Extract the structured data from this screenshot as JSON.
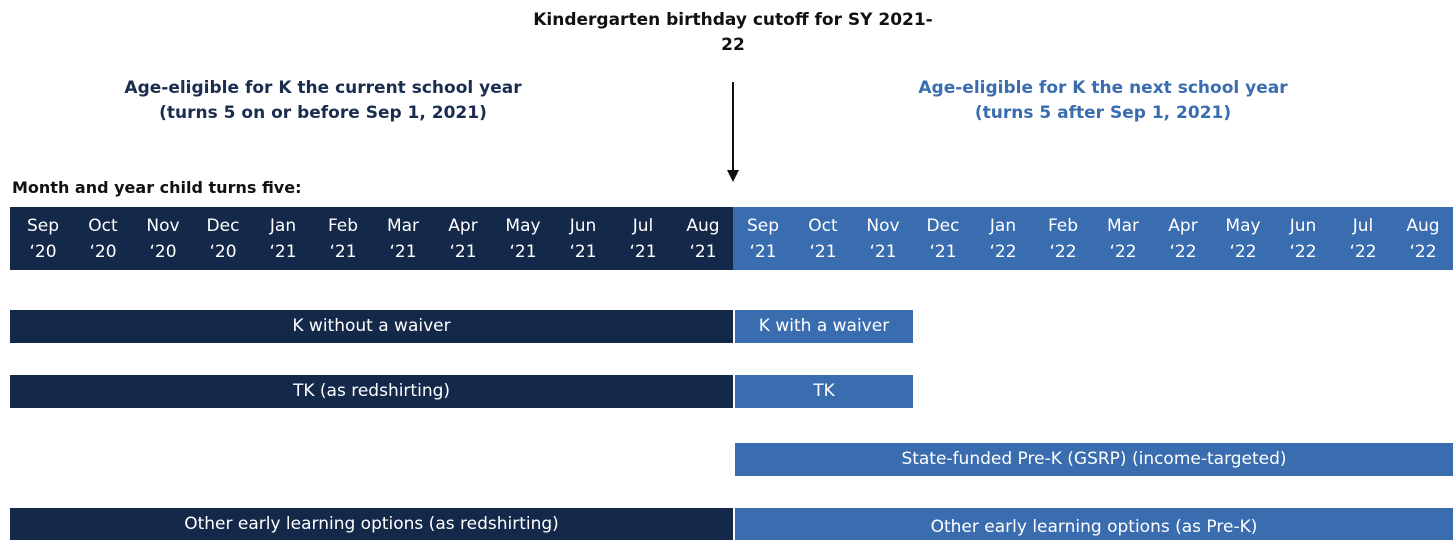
{
  "header": {
    "title": "Kindergarten birthday cutoff for SY 2021-22",
    "left_heading": [
      "Age-eligible for K the current school year",
      "(turns 5 on or before Sep 1, 2021)"
    ],
    "right_heading": [
      "Age-eligible for K the next school year",
      "(turns 5 after Sep 1, 2021)"
    ]
  },
  "timeline": {
    "label": "Month and year child turns five:",
    "months": [
      {
        "month": "Sep",
        "year": "‘20"
      },
      {
        "month": "Oct",
        "year": "‘20"
      },
      {
        "month": "Nov",
        "year": "‘20"
      },
      {
        "month": "Dec",
        "year": "‘20"
      },
      {
        "month": "Jan",
        "year": "‘21"
      },
      {
        "month": "Feb",
        "year": "‘21"
      },
      {
        "month": "Mar",
        "year": "‘21"
      },
      {
        "month": "Apr",
        "year": "‘21"
      },
      {
        "month": "May",
        "year": "‘21"
      },
      {
        "month": "Jun",
        "year": "‘21"
      },
      {
        "month": "Jul",
        "year": "‘21"
      },
      {
        "month": "Aug",
        "year": "‘21"
      },
      {
        "month": "Sep",
        "year": "‘21"
      },
      {
        "month": "Oct",
        "year": "‘21"
      },
      {
        "month": "Nov",
        "year": "‘21"
      },
      {
        "month": "Dec",
        "year": "‘21"
      },
      {
        "month": "Jan",
        "year": "‘22"
      },
      {
        "month": "Feb",
        "year": "‘22"
      },
      {
        "month": "Mar",
        "year": "‘22"
      },
      {
        "month": "Apr",
        "year": "‘22"
      },
      {
        "month": "May",
        "year": "‘22"
      },
      {
        "month": "Jun",
        "year": "‘22"
      },
      {
        "month": "Jul",
        "year": "‘22"
      },
      {
        "month": "Aug",
        "year": "‘22"
      }
    ]
  },
  "options": [
    {
      "left": "K without a waiver",
      "right": "K with a waiver"
    },
    {
      "left": "TK (as redshirting)",
      "right": "TK"
    },
    {
      "right": "State-funded Pre-K (GSRP) (income-targeted)"
    },
    {
      "left": "Other early learning options (as redshirting)",
      "right": "Other early learning options (as Pre-K)"
    }
  ]
}
